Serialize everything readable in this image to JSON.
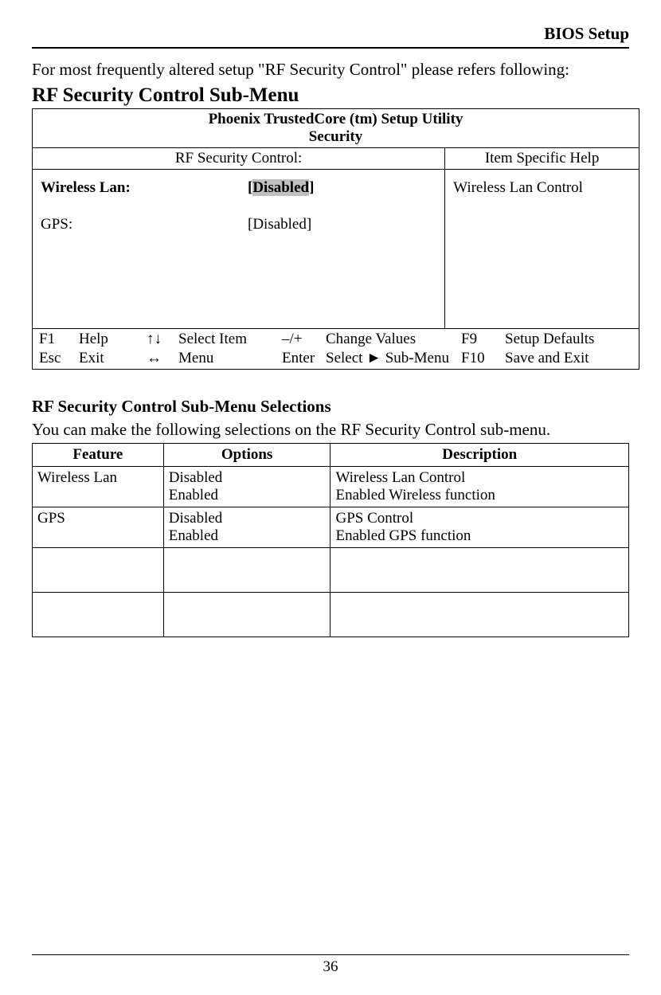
{
  "header": {
    "title": "BIOS Setup"
  },
  "intro": "For most frequently altered setup \"RF Security Control\" please refers following:",
  "section_title": "RF Security Control Sub-Menu",
  "bios": {
    "utility_title": "Phoenix TrustedCore (tm) Setup Utility",
    "category": "Security",
    "left_header": "RF Security Control:",
    "right_header": "Item Specific Help",
    "options": [
      {
        "label": "Wireless Lan:",
        "value": "Disabled",
        "bold": true,
        "highlighted": true
      },
      {
        "label": "GPS:",
        "value": "Disabled",
        "bold": false,
        "highlighted": false
      }
    ],
    "help_text": "Wireless Lan Control",
    "footer": {
      "f1_key": "F1",
      "f1_label": "Help",
      "updn_key": "↑↓",
      "updn_label": "Select Item",
      "pm_key": "–/+",
      "pm_label": "Change Values",
      "f9_key": "F9",
      "f9_label": "Setup Defaults",
      "esc_key": "Esc",
      "esc_label": "Exit",
      "lr_key": "↔",
      "lr_label": "Menu",
      "enter_key": "Enter",
      "enter_label": "Select ► Sub-Menu",
      "f10_key": "F10",
      "f10_label": "Save and Exit"
    }
  },
  "selections": {
    "title": "RF Security Control Sub-Menu Selections",
    "intro": "You can make the following selections on the RF Security Control sub-menu.",
    "columns": [
      "Feature",
      "Options",
      "Description"
    ],
    "rows": [
      {
        "feature": "Wireless Lan",
        "options": "Disabled\nEnabled",
        "description": "Wireless Lan Control\nEnabled Wireless function"
      },
      {
        "feature": "GPS",
        "options": "Disabled\nEnabled",
        "description": "GPS Control\nEnabled GPS function"
      }
    ]
  },
  "page_number": "36",
  "style": {
    "background_color": "#ffffff",
    "text_color": "#000000",
    "highlight_color": "#c0c0c0",
    "border_color": "#000000",
    "base_font_size": 19,
    "title_font_size": 25,
    "body_font_size": 21
  }
}
